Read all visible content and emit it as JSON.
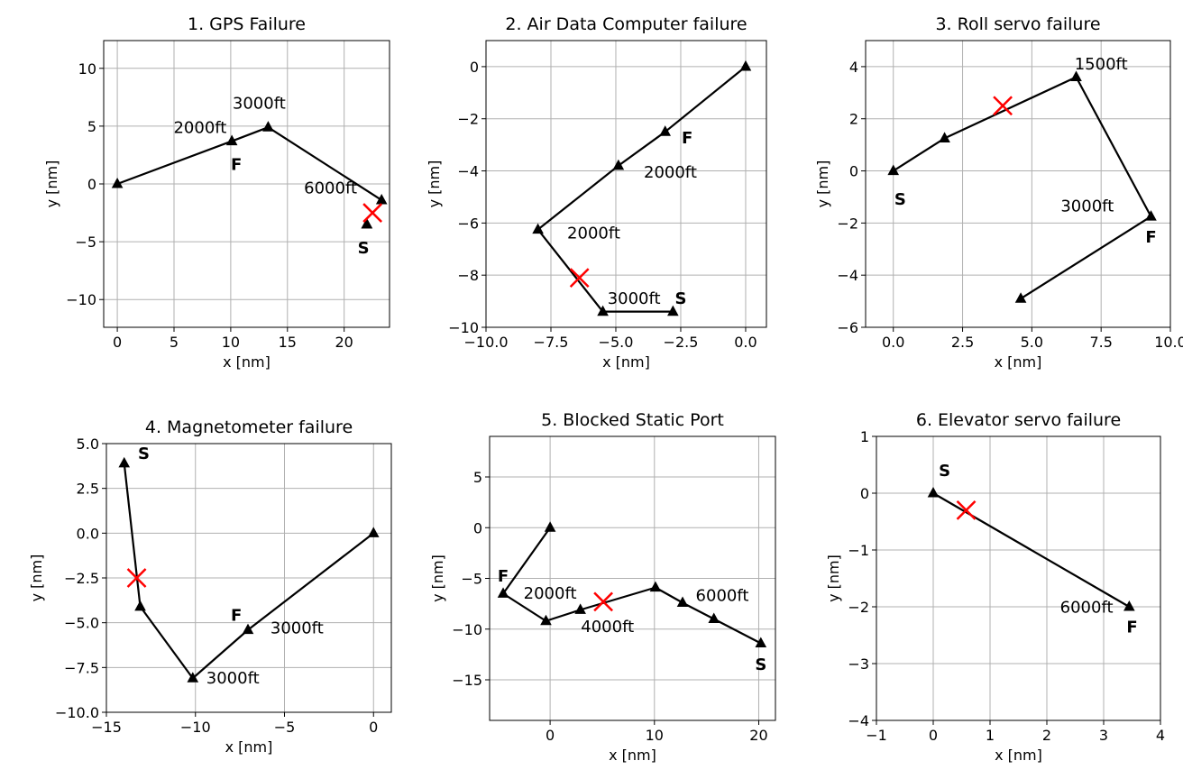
{
  "figure": {
    "background": "#ffffff",
    "line_color": "#000000",
    "marker_color": "#000000",
    "failure_marker_color": "#ff0000",
    "grid_color": "#b0b0b0"
  },
  "chart_data": [
    {
      "type": "line",
      "title": "1. GPS Failure",
      "xlabel": "x [nm]",
      "ylabel": "y [nm]",
      "xlim": [
        -1.2,
        24
      ],
      "ylim": [
        -12.4,
        12.4
      ],
      "xticks": [
        0,
        5,
        10,
        15,
        20
      ],
      "xtick_labels": [
        "0",
        "5",
        "10",
        "15",
        "20"
      ],
      "yticks": [
        -10,
        -5,
        0,
        5,
        10
      ],
      "ytick_labels": [
        "−10",
        "−5",
        "0",
        "5",
        "10"
      ],
      "grid": true,
      "series": [
        {
          "x": [
            0,
            10.1,
            13.3,
            23.3
          ],
          "y": [
            0,
            3.7,
            4.9,
            -1.4
          ]
        },
        {
          "x": [
            22,
            22
          ],
          "y": [
            -3.5,
            -3.5
          ]
        }
      ],
      "failure_point": {
        "x": 22.5,
        "y": -2.5
      },
      "annotations": [
        {
          "text": "2000ft",
          "x": 7.3,
          "y": 4.4,
          "bold": false
        },
        {
          "text": "3000ft",
          "x": 12.5,
          "y": 6.5,
          "bold": false
        },
        {
          "text": "6000ft",
          "x": 18.8,
          "y": -0.8,
          "bold": false
        },
        {
          "text": "F",
          "x": 10.5,
          "y": 1.2,
          "bold": true
        },
        {
          "text": "S",
          "x": 21.7,
          "y": -6.0,
          "bold": true
        }
      ]
    },
    {
      "type": "line",
      "title": "2. Air Data Computer failure",
      "xlabel": "x [nm]",
      "ylabel": "y [nm]",
      "xlim": [
        -10,
        0.8
      ],
      "ylim": [
        -10,
        1
      ],
      "xticks": [
        -10,
        -7.5,
        -5,
        -2.5,
        0
      ],
      "xtick_labels": [
        "−10.0",
        "−7.5",
        "−5.0",
        "−2.5",
        "0.0"
      ],
      "yticks": [
        -10,
        -8,
        -6,
        -4,
        -2,
        0
      ],
      "ytick_labels": [
        "−10",
        "−8",
        "−6",
        "−4",
        "−2",
        "0"
      ],
      "grid": true,
      "series": [
        {
          "x": [
            0,
            -3.1,
            -4.9,
            -8,
            -5.5,
            -2.8
          ],
          "y": [
            0,
            -2.5,
            -3.8,
            -6.25,
            -9.4,
            -9.4
          ]
        }
      ],
      "failure_point": {
        "x": -6.4,
        "y": -8.1
      },
      "annotations": [
        {
          "text": "F",
          "x": -2.25,
          "y": -2.95,
          "bold": true
        },
        {
          "text": "2000ft",
          "x": -2.9,
          "y": -4.25,
          "bold": false
        },
        {
          "text": "2000ft",
          "x": -5.85,
          "y": -6.6,
          "bold": false
        },
        {
          "text": "3000ft",
          "x": -4.3,
          "y": -9.1,
          "bold": false
        },
        {
          "text": "S",
          "x": -2.5,
          "y": -9.1,
          "bold": true
        }
      ]
    },
    {
      "type": "line",
      "title": "3. Roll servo failure",
      "xlabel": "x [nm]",
      "ylabel": "y [nm]",
      "xlim": [
        -1,
        10
      ],
      "ylim": [
        -6,
        5
      ],
      "xticks": [
        0,
        2.5,
        5,
        7.5,
        10
      ],
      "xtick_labels": [
        "0.0",
        "2.5",
        "5.0",
        "7.5",
        "10.0"
      ],
      "yticks": [
        -6,
        -4,
        -2,
        0,
        2,
        4
      ],
      "ytick_labels": [
        "−6",
        "−4",
        "−2",
        "0",
        "2",
        "4"
      ],
      "grid": true,
      "series": [
        {
          "x": [
            0,
            1.85,
            6.6,
            9.3,
            4.6
          ],
          "y": [
            0,
            1.25,
            3.6,
            -1.75,
            -4.9
          ]
        }
      ],
      "failure_point": {
        "x": 3.95,
        "y": 2.5
      },
      "annotations": [
        {
          "text": "1500ft",
          "x": 7.5,
          "y": 3.9,
          "bold": false
        },
        {
          "text": "S",
          "x": 0.25,
          "y": -1.3,
          "bold": true
        },
        {
          "text": "3000ft",
          "x": 7.0,
          "y": -1.55,
          "bold": false
        },
        {
          "text": "F",
          "x": 9.3,
          "y": -2.75,
          "bold": true
        }
      ]
    },
    {
      "type": "line",
      "title": "4. Magnetometer failure",
      "xlabel": "x [nm]",
      "ylabel": "y [nm]",
      "xlim": [
        -15,
        1
      ],
      "ylim": [
        -10,
        5
      ],
      "xticks": [
        -15,
        -10,
        -5,
        0
      ],
      "xtick_labels": [
        "−15",
        "−10",
        "−5",
        "0"
      ],
      "yticks": [
        -10,
        -7.5,
        -5,
        -2.5,
        0,
        2.5,
        5
      ],
      "ytick_labels": [
        "−10.0",
        "−7.5",
        "−5.0",
        "−2.5",
        "0.0",
        "2.5",
        "5.0"
      ],
      "grid": true,
      "series": [
        {
          "x": [
            -14,
            -13.1,
            -10.15,
            -7.05,
            0
          ],
          "y": [
            3.9,
            -4.1,
            -8.1,
            -5.4,
            0
          ]
        }
      ],
      "failure_point": {
        "x": -13.3,
        "y": -2.5
      },
      "annotations": [
        {
          "text": "S",
          "x": -12.9,
          "y": 4.15,
          "bold": true
        },
        {
          "text": "F",
          "x": -7.7,
          "y": -4.9,
          "bold": true
        },
        {
          "text": "3000ft",
          "x": -4.3,
          "y": -5.6,
          "bold": false
        },
        {
          "text": "3000ft",
          "x": -7.9,
          "y": -8.4,
          "bold": false
        }
      ]
    },
    {
      "type": "line",
      "title": "5. Blocked Static Port",
      "xlabel": "x [nm]",
      "ylabel": "y [nm]",
      "xlim": [
        -5.8,
        21.6
      ],
      "ylim": [
        -19,
        9
      ],
      "xticks": [
        0,
        10,
        20
      ],
      "xtick_labels": [
        "0",
        "10",
        "20"
      ],
      "yticks": [
        -15,
        -10,
        -5,
        0,
        5
      ],
      "ytick_labels": [
        "−15",
        "−10",
        "−5",
        "0",
        "5"
      ],
      "grid": true,
      "series": [
        {
          "x": [
            0,
            -4.5,
            -0.4,
            2.9,
            10.1,
            12.7,
            15.7,
            20.2
          ],
          "y": [
            0,
            -6.5,
            -9.2,
            -8.1,
            -5.9,
            -7.4,
            -9,
            -11.4
          ]
        }
      ],
      "failure_point": {
        "x": 5.1,
        "y": -7.3
      },
      "annotations": [
        {
          "text": "F",
          "x": -4.5,
          "y": -5.3,
          "bold": true
        },
        {
          "text": "2000ft",
          "x": 0,
          "y": -7.0,
          "bold": false
        },
        {
          "text": "4000ft",
          "x": 5.5,
          "y": -10.3,
          "bold": false
        },
        {
          "text": "6000ft",
          "x": 16.5,
          "y": -7.2,
          "bold": false
        },
        {
          "text": "S",
          "x": 20.2,
          "y": -14.0,
          "bold": true
        }
      ]
    },
    {
      "type": "line",
      "title": "6. Elevator servo failure",
      "xlabel": "x [nm]",
      "ylabel": "y [nm]",
      "xlim": [
        -1,
        4
      ],
      "ylim": [
        -4,
        1
      ],
      "xticks": [
        -1,
        0,
        1,
        2,
        3,
        4
      ],
      "xtick_labels": [
        "−1",
        "0",
        "1",
        "2",
        "3",
        "4"
      ],
      "yticks": [
        -4,
        -3,
        -2,
        -1,
        0,
        1
      ],
      "ytick_labels": [
        "−4",
        "−3",
        "−2",
        "−1",
        "0",
        "1"
      ],
      "grid": true,
      "series": [
        {
          "x": [
            0,
            3.45
          ],
          "y": [
            0,
            -2
          ]
        }
      ],
      "failure_point": {
        "x": 0.58,
        "y": -0.3
      },
      "annotations": [
        {
          "text": "S",
          "x": 0.2,
          "y": 0.3,
          "bold": true
        },
        {
          "text": "6000ft",
          "x": 2.7,
          "y": -2.1,
          "bold": false
        },
        {
          "text": "F",
          "x": 3.5,
          "y": -2.45,
          "bold": true
        }
      ]
    }
  ]
}
